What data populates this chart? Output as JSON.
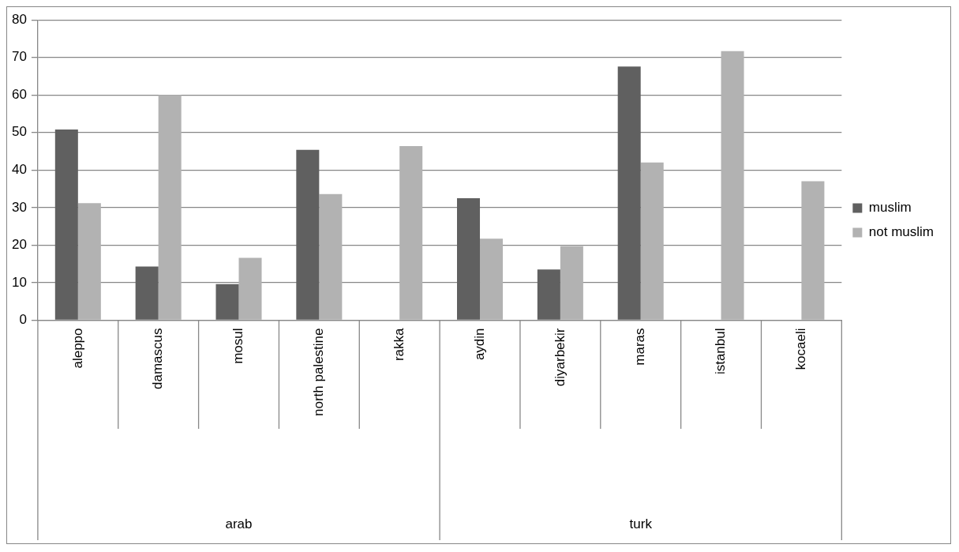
{
  "chart_data": {
    "type": "bar",
    "categories": [
      "aleppo",
      "damascus",
      "mosul",
      "north palestine",
      "rakka",
      "aydin",
      "diyarbekir",
      "maras",
      "istanbul",
      "kocaeli"
    ],
    "series": [
      {
        "name": "muslim",
        "color": "#606060",
        "values": [
          50.8,
          14.3,
          9.6,
          45.4,
          null,
          32.5,
          13.5,
          67.6,
          null,
          null
        ]
      },
      {
        "name": "not muslim",
        "color": "#b2b2b2",
        "values": [
          31.2,
          60,
          16.6,
          33.6,
          46.4,
          21.7,
          19.7,
          42,
          71.7,
          37
        ]
      }
    ],
    "annotations": [
      "arab",
      "turk"
    ],
    "ylim": [
      0,
      80
    ],
    "yticks": [
      0,
      10,
      20,
      30,
      40,
      50,
      60,
      70,
      80
    ],
    "grid": "y",
    "legend": "right"
  }
}
